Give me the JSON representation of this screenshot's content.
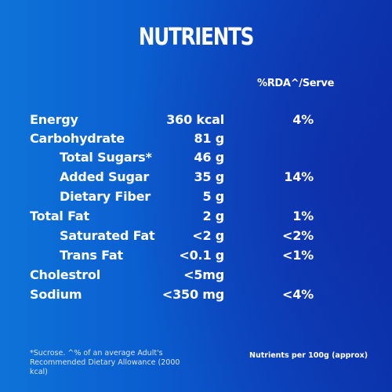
{
  "title": "NUTRIENTS",
  "rda_header": "%RDA^/Serve",
  "rows": [
    {
      "name": "Energy",
      "amount": "360 kcal",
      "rda": "4%"
    },
    {
      "name": "Carbohydrate",
      "amount": "81 g",
      "rda": ""
    },
    {
      "name": "Total Sugars*",
      "amount": "46 g",
      "rda": ""
    },
    {
      "name": "Added Sugar",
      "amount": "35 g",
      "rda": "14%"
    },
    {
      "name": "Dietary Fiber",
      "amount": "5 g",
      "rda": ""
    },
    {
      "name": "Total Fat",
      "amount": "2 g",
      "rda": "1%"
    },
    {
      "name": "Saturated Fat",
      "amount": "<2 g",
      "rda": "<2%"
    },
    {
      "name": "Trans Fat",
      "amount": "<0.1 g",
      "rda": "<1%"
    },
    {
      "name": "Cholestrol",
      "amount": "<5mg",
      "rda": ""
    },
    {
      "name": "Sodium",
      "amount": "<350 mg",
      "rda": "<4%"
    }
  ],
  "footnote": "*Sucrose. ^% of an average Adult's Recommended Dietary Allowance (2000 kcal)",
  "per_100g_note": "Nutrients per 100g (approx)",
  "colors": {
    "background_left": "#0e73d9",
    "background_right": "#0a36ae",
    "text": "#ffffff"
  }
}
